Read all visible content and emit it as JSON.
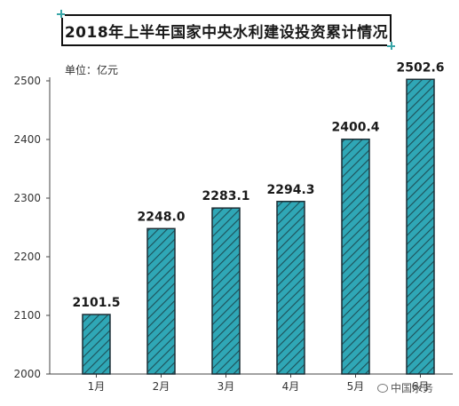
{
  "title": "2018年上半年国家中央水利建设投资累计情况",
  "unit": "单位：亿元",
  "watermark": "中国水务",
  "colors": {
    "bar_fill": "#2fa7b6",
    "bar_stroke": "#1f2f36",
    "hatch": "#1d4f57",
    "title_accent": "#3aa6a8"
  },
  "chart_data": {
    "type": "bar",
    "title": "2018年上半年国家中央水利建设投资累计情况",
    "unit": "单位：亿元",
    "categories": [
      "1月",
      "2月",
      "3月",
      "4月",
      "5月",
      "6月"
    ],
    "values": [
      2101.5,
      2248.0,
      2283.1,
      2294.3,
      2400.4,
      2502.6
    ],
    "value_labels": [
      "2101.5",
      "2248.0",
      "2283.1",
      "2294.3",
      "2400.4",
      "2502.6"
    ],
    "ylim": [
      2000,
      2500
    ],
    "yticks": [
      2000,
      2100,
      2200,
      2300,
      2400,
      2500
    ],
    "grid": false,
    "legend": "none"
  }
}
